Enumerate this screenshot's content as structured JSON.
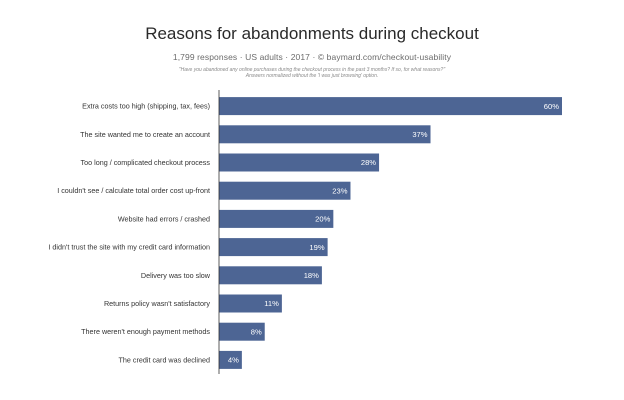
{
  "chart_data": {
    "type": "bar",
    "orientation": "horizontal",
    "title": "Reasons for abandonments during checkout",
    "subtitle": "1,799 responses · US adults · 2017 · © baymard.com/checkout-usability",
    "notes": [
      "\"Have you abandoned any online purchases during the checkout process in the past 3 months? If so, for what reasons?\"",
      "Answers normalized without the 'I was just browsing' option."
    ],
    "categories": [
      "Extra costs too high (shipping, tax, fees)",
      "The site wanted me to create an account",
      "Too long / complicated checkout process",
      "I couldn't see / calculate total order cost up-front",
      "Website had errors / crashed",
      "I didn't trust the site with my credit card information",
      "Delivery was too slow",
      "Returns policy wasn't satisfactory",
      "There weren't enough payment methods",
      "The credit card was declined"
    ],
    "values": [
      60,
      37,
      28,
      23,
      20,
      19,
      18,
      11,
      8,
      4
    ],
    "value_labels": [
      "60%",
      "37%",
      "28%",
      "23%",
      "20%",
      "19%",
      "18%",
      "11%",
      "8%",
      "4%"
    ],
    "xlim": [
      0,
      60
    ],
    "grid": false,
    "legend": "none",
    "bar_color": "#4d6594",
    "axis_color": "#333333"
  }
}
